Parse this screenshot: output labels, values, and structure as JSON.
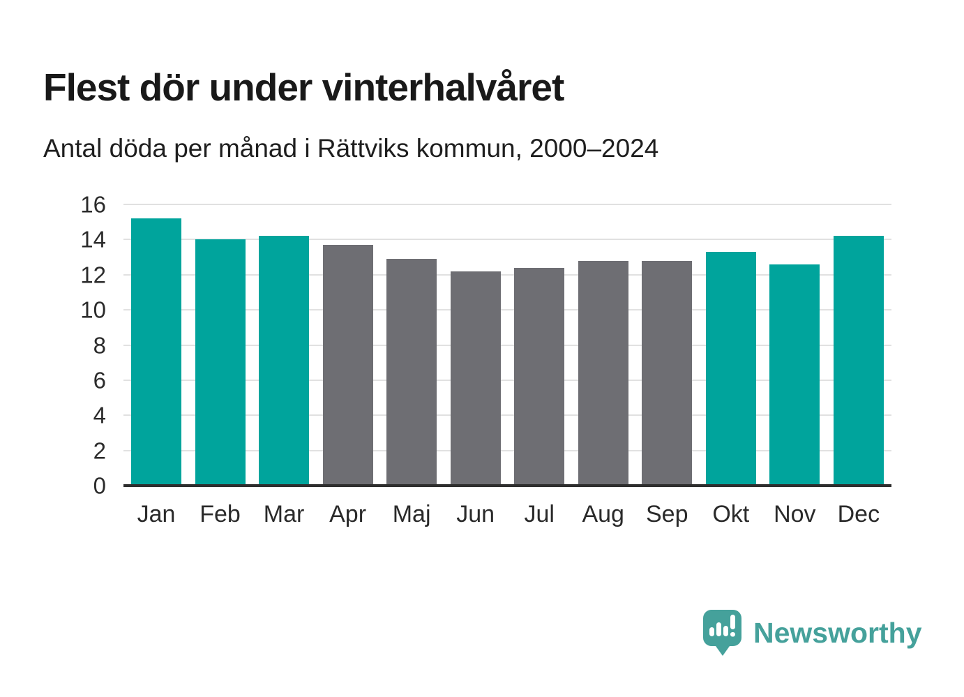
{
  "header": {
    "title": "Flest dör under vinterhalvåret",
    "subtitle": "Antal döda per månad i Rättviks kommun, 2000–2024"
  },
  "chart_data": {
    "type": "bar",
    "title": "Flest dör under vinterhalvåret",
    "subtitle": "Antal döda per månad i Rättviks kommun, 2000–2024",
    "categories": [
      "Jan",
      "Feb",
      "Mar",
      "Apr",
      "Maj",
      "Jun",
      "Jul",
      "Aug",
      "Sep",
      "Okt",
      "Nov",
      "Dec"
    ],
    "values": [
      15.2,
      14.0,
      14.2,
      13.7,
      12.9,
      12.2,
      12.4,
      12.8,
      12.8,
      13.3,
      12.6,
      14.2
    ],
    "bar_colors": [
      "teal",
      "teal",
      "teal",
      "gray",
      "gray",
      "gray",
      "gray",
      "gray",
      "gray",
      "teal",
      "teal",
      "teal"
    ],
    "xlabel": "",
    "ylabel": "",
    "ylim": [
      0,
      16
    ],
    "yticks": [
      0,
      2,
      4,
      6,
      8,
      10,
      12,
      14,
      16
    ],
    "grid": true,
    "legend": false,
    "colors": {
      "teal": "#00a49c",
      "gray": "#6e6e73"
    }
  },
  "footer": {
    "logo_icon": "bar-chart-speech-bubble-icon",
    "logo_text": "Newsworthy",
    "logo_color": "#45a19b"
  },
  "style_colors": {
    "accent_teal": "#00a49c",
    "neutral_gray": "#6e6e73",
    "gridline": "#e1e1e1",
    "axis_line": "#2e2e2e",
    "text": "#191919"
  }
}
